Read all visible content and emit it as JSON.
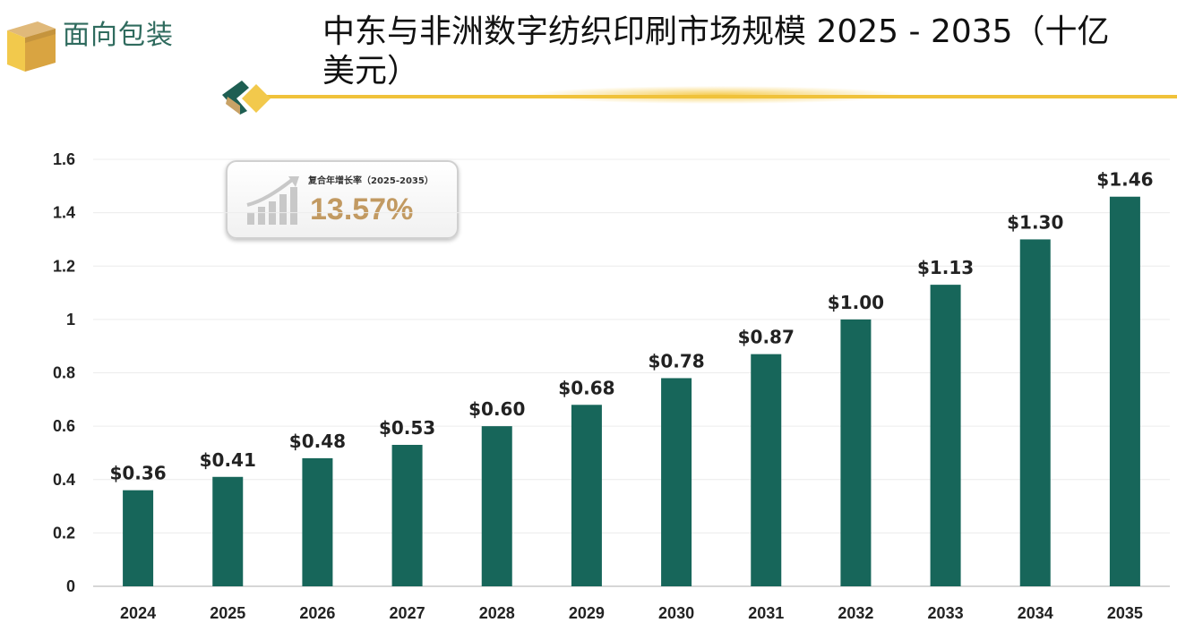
{
  "brand": {
    "name": "面向包装"
  },
  "title": "中东与非洲数字纺织印刷市场规模 2025 - 2035（十亿美元）",
  "cagr": {
    "label": "复合年增长率（2025-2035）",
    "value": "13.57%"
  },
  "colors": {
    "bar": "#17665a",
    "accent": "#f5c842",
    "brand": "#2f6b5e",
    "cagr": "#c29a62"
  },
  "chart_data": {
    "type": "bar",
    "title": "中东与非洲数字纺织印刷市场规模 2025 - 2035（十亿美元）",
    "xlabel": "",
    "ylabel": "",
    "ylim": [
      0,
      1.6
    ],
    "yticks": [
      "0",
      "0.2",
      "0.4",
      "0.6",
      "0.8",
      "1",
      "1.2",
      "1.4",
      "1.6"
    ],
    "categories": [
      "2024",
      "2025",
      "2026",
      "2027",
      "2028",
      "2029",
      "2030",
      "2031",
      "2032",
      "2033",
      "2034",
      "2035"
    ],
    "values": [
      0.36,
      0.41,
      0.48,
      0.53,
      0.6,
      0.68,
      0.78,
      0.87,
      1.0,
      1.13,
      1.3,
      1.46
    ],
    "labels": [
      "$0.36",
      "$0.41",
      "$0.48",
      "$0.53",
      "$0.60",
      "$0.68",
      "$0.78",
      "$0.87",
      "$1.00",
      "$1.13",
      "$1.30",
      "$1.46"
    ],
    "grid": true,
    "legend": "none"
  }
}
